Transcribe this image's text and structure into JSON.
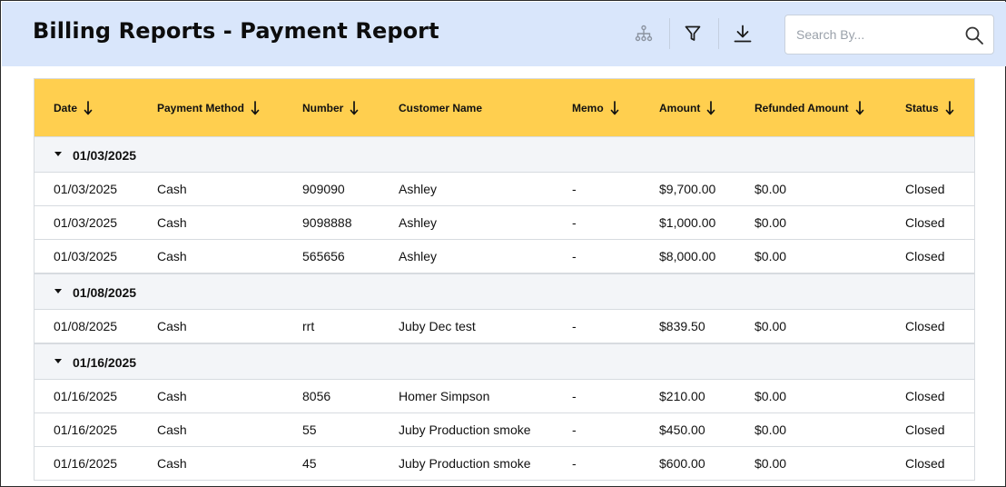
{
  "header": {
    "title": "Billing Reports - Payment Report",
    "search_placeholder": "Search By..."
  },
  "columns": [
    {
      "label": "Date",
      "sortable": true
    },
    {
      "label": "Payment Method",
      "sortable": true
    },
    {
      "label": "Number",
      "sortable": true
    },
    {
      "label": "Customer Name",
      "sortable": false
    },
    {
      "label": "Memo",
      "sortable": true
    },
    {
      "label": "Amount",
      "sortable": true
    },
    {
      "label": "Refunded Amount",
      "sortable": true
    },
    {
      "label": "Status",
      "sortable": true
    }
  ],
  "groups": [
    {
      "label": "01/03/2025",
      "rows": [
        [
          "01/03/2025",
          "Cash",
          "909090",
          "Ashley",
          "-",
          "$9,700.00",
          "$0.00",
          "Closed"
        ],
        [
          "01/03/2025",
          "Cash",
          "9098888",
          "Ashley",
          "-",
          "$1,000.00",
          "$0.00",
          "Closed"
        ],
        [
          "01/03/2025",
          "Cash",
          "565656",
          "Ashley",
          "-",
          "$8,000.00",
          "$0.00",
          "Closed"
        ]
      ]
    },
    {
      "label": "01/08/2025",
      "rows": [
        [
          "01/08/2025",
          "Cash",
          "rrt",
          "Juby Dec test",
          "-",
          "$839.50",
          "$0.00",
          "Closed"
        ]
      ]
    },
    {
      "label": "01/16/2025",
      "rows": [
        [
          "01/16/2025",
          "Cash",
          "8056",
          "Homer Simpson",
          "-",
          "$210.00",
          "$0.00",
          "Closed"
        ],
        [
          "01/16/2025",
          "Cash",
          "55",
          "Juby Production smoke",
          "-",
          "$450.00",
          "$0.00",
          "Closed"
        ],
        [
          "01/16/2025",
          "Cash",
          "45",
          "Juby Production smoke",
          "-",
          "$600.00",
          "$0.00",
          "Closed"
        ]
      ]
    }
  ],
  "icons": {
    "hierarchy": "hierarchy-icon",
    "filter": "filter-icon",
    "download": "download-icon",
    "search": "search-icon",
    "sort": "sort-arrow-icon",
    "collapse": "caret-down-icon"
  },
  "colors": {
    "header_bg": "#d9e6fb",
    "table_header_bg": "#ffcf4f",
    "group_bg": "#f3f5f8",
    "border": "#d7dbe0"
  }
}
